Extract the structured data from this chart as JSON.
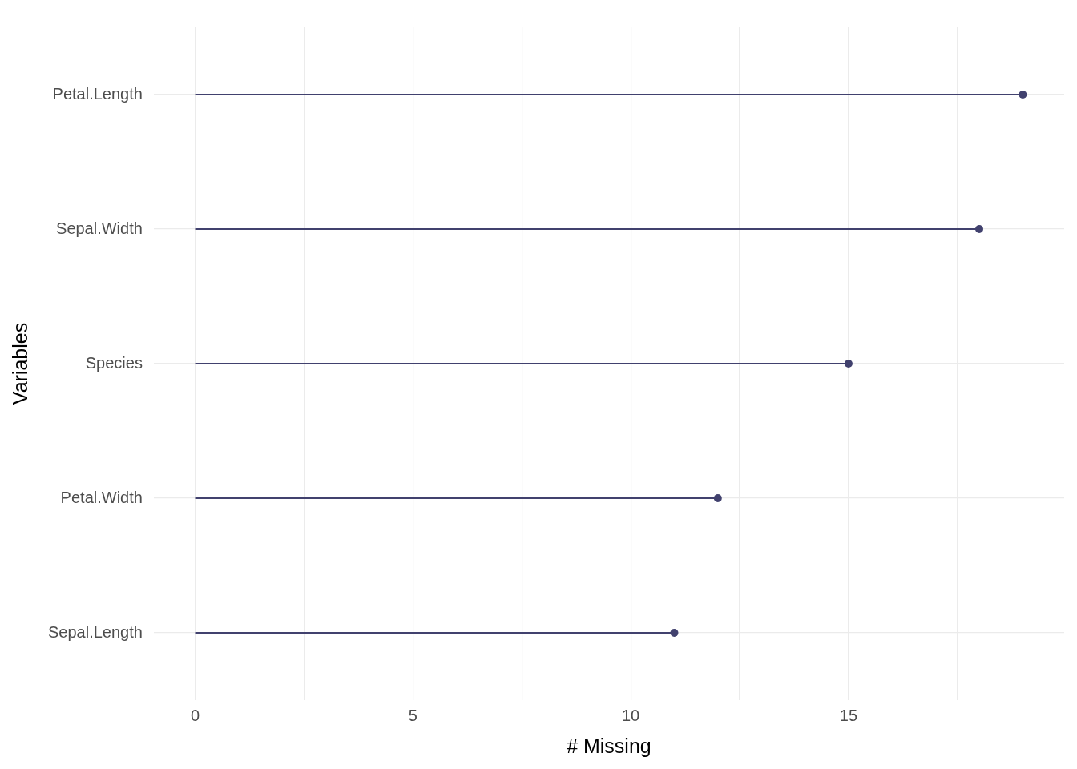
{
  "chart_data": {
    "type": "lollipop",
    "orientation": "horizontal",
    "xlabel": "# Missing",
    "ylabel": "Variables",
    "categories": [
      "Petal.Length",
      "Sepal.Width",
      "Species",
      "Petal.Width",
      "Sepal.Length"
    ],
    "values": [
      19,
      18,
      15,
      12,
      11
    ],
    "color": "#41416e",
    "marker": "circle",
    "xlim": [
      -0.95,
      19.95
    ],
    "xticks": [
      0,
      {
        "value": 2.5,
        "label": null
      },
      5,
      {
        "value": 7.5,
        "label": null
      },
      10,
      {
        "value": 12.5,
        "label": null
      },
      15,
      {
        "value": 17.5,
        "label": null
      }
    ],
    "grid": true,
    "legend": false
  }
}
